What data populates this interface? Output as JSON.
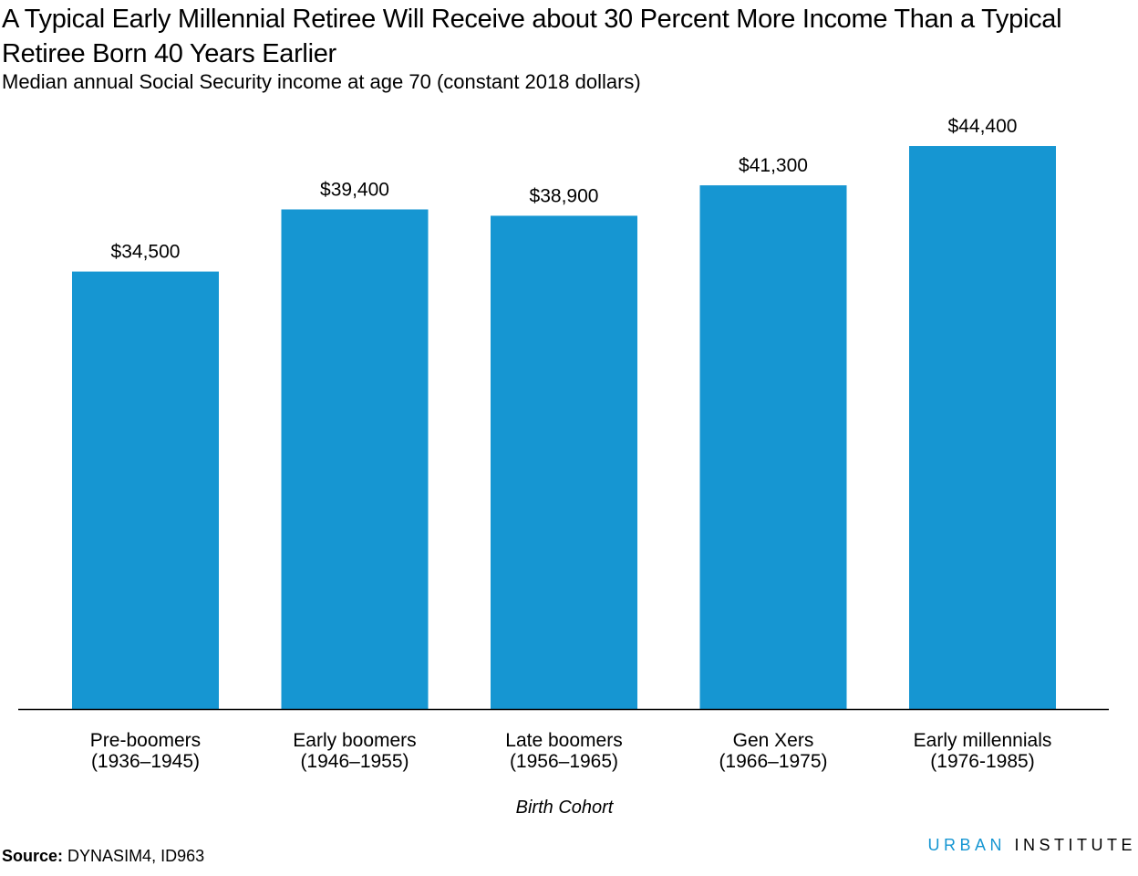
{
  "title": "A Typical Early Millennial Retiree Will Receive about 30 Percent More Income Than a Typical Retiree Born 40 Years Earlier",
  "subtitle": "Median annual Social Security income at age 70 (constant 2018 dollars)",
  "chart_data": {
    "type": "bar",
    "categories": [
      [
        "Pre-boomers",
        "(1936–1945)"
      ],
      [
        "Early boomers",
        "(1946–1955)"
      ],
      [
        "Late boomers",
        "(1956–1965)"
      ],
      [
        "Gen Xers",
        "(1966–1975)"
      ],
      [
        "Early millennials",
        "(1976-1985)"
      ]
    ],
    "values": [
      34500,
      39400,
      38900,
      41300,
      44400
    ],
    "value_labels": [
      "$34,500",
      "$39,400",
      "$38,900",
      "$41,300",
      "$44,400"
    ],
    "xlabel": "Birth Cohort",
    "ylabel": "",
    "ylim": [
      0,
      48000
    ],
    "bar_color": "#1696d2",
    "grid": false,
    "legend": "none"
  },
  "source": {
    "label": "Source:",
    "text": "DYNASIM4, ID963"
  },
  "brand": {
    "part1": "URBAN",
    "part2": "INSTITUTE",
    "accent_color": "#1696d2"
  }
}
